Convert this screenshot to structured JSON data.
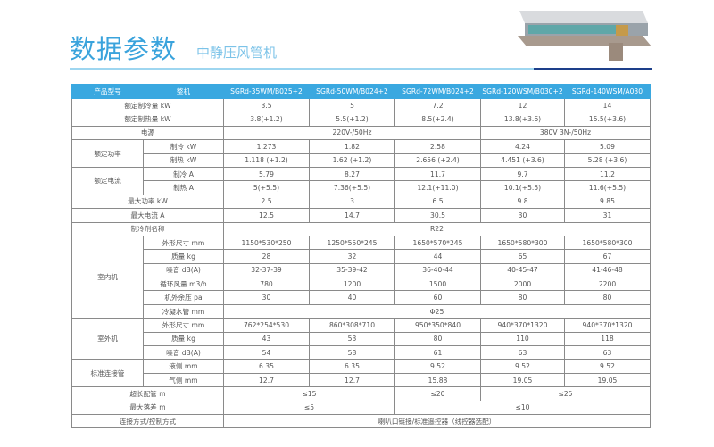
{
  "title": "数据参数",
  "subtitle": "中静压风管机",
  "colors": {
    "accent": "#3aa8e0",
    "rule_dark": "#1d3f8a"
  },
  "header": {
    "label1": "产品型号",
    "label2": "整机",
    "models": [
      "SGRd-35WM/B025+2",
      "SGRd-50WM/B024+2",
      "SGRd-72WM/B024+2",
      "SGRd-120WSM/B030+2",
      "SGRd-140WSM/A030"
    ]
  },
  "rows": [
    {
      "label": "额定制冷量 kW",
      "cells": [
        {
          "t": "3.5"
        },
        {
          "t": "5"
        },
        {
          "t": "7.2"
        },
        {
          "t": "12"
        },
        {
          "t": "14"
        }
      ]
    },
    {
      "label": "额定制热量 kW",
      "cells": [
        {
          "t": "3.8(+1.2)"
        },
        {
          "t": "5.5(+1.2)"
        },
        {
          "t": "8.5(+2.4)"
        },
        {
          "t": "13.8(+3.6)"
        },
        {
          "t": "15.5(+3.6)"
        }
      ]
    },
    {
      "label": "电源",
      "cells": [
        {
          "t": "220V-/50Hz",
          "span": 3
        },
        {
          "t": "380V 3N-/50Hz",
          "span": 2
        }
      ]
    },
    {
      "group": "额定功率",
      "groupSpan": 2,
      "label": "制冷 kW",
      "cells": [
        {
          "t": "1.273"
        },
        {
          "t": "1.82"
        },
        {
          "t": "2.58"
        },
        {
          "t": "4.24"
        },
        {
          "t": "5.09"
        }
      ]
    },
    {
      "label": "制热 kW",
      "sub": true,
      "cells": [
        {
          "t": "1.118 (+1.2)"
        },
        {
          "t": "1.62 (+1.2)"
        },
        {
          "t": "2.656 (+2.4)"
        },
        {
          "t": "4.451 (+3.6)"
        },
        {
          "t": "5.28 (+3.6)"
        }
      ]
    },
    {
      "group": "额定电流",
      "groupSpan": 2,
      "label": "制冷 A",
      "cells": [
        {
          "t": "5.79"
        },
        {
          "t": "8.27"
        },
        {
          "t": "11.7"
        },
        {
          "t": "9.7"
        },
        {
          "t": "11.2"
        }
      ]
    },
    {
      "label": "制热 A",
      "sub": true,
      "cells": [
        {
          "t": "5(+5.5)"
        },
        {
          "t": "7.36(+5.5)"
        },
        {
          "t": "12.1(+11.0)"
        },
        {
          "t": "10.1(+5.5)"
        },
        {
          "t": "11.6(+5.5)"
        }
      ]
    },
    {
      "label": "最大功率 kW",
      "cells": [
        {
          "t": "2.5"
        },
        {
          "t": "3"
        },
        {
          "t": "6.5"
        },
        {
          "t": "9.8"
        },
        {
          "t": "9.85"
        }
      ]
    },
    {
      "label": "最大电流 A",
      "cells": [
        {
          "t": "12.5"
        },
        {
          "t": "14.7"
        },
        {
          "t": "30.5"
        },
        {
          "t": "30"
        },
        {
          "t": "31"
        }
      ]
    },
    {
      "label": "制冷剂名称",
      "cells": [
        {
          "t": "R22",
          "span": 5
        }
      ]
    },
    {
      "group": "室内机",
      "groupSpan": 6,
      "label": "外形尺寸 mm",
      "cells": [
        {
          "t": "1150*530*250"
        },
        {
          "t": "1250*550*245"
        },
        {
          "t": "1650*570*245"
        },
        {
          "t": "1650*580*300"
        },
        {
          "t": "1650*580*300"
        }
      ]
    },
    {
      "label": "质量 kg",
      "sub": true,
      "cells": [
        {
          "t": "28"
        },
        {
          "t": "32"
        },
        {
          "t": "44"
        },
        {
          "t": "65"
        },
        {
          "t": "67"
        }
      ]
    },
    {
      "label": "噪音 dB(A)",
      "sub": true,
      "cells": [
        {
          "t": "32-37-39"
        },
        {
          "t": "35-39-42"
        },
        {
          "t": "36-40-44"
        },
        {
          "t": "40-45-47"
        },
        {
          "t": "41-46-48"
        }
      ]
    },
    {
      "label": "循环风量 m3/h",
      "sub": true,
      "cells": [
        {
          "t": "780"
        },
        {
          "t": "1200"
        },
        {
          "t": "1500"
        },
        {
          "t": "2000"
        },
        {
          "t": "2200"
        }
      ]
    },
    {
      "label": "机外余压 pa",
      "sub": true,
      "cells": [
        {
          "t": "30"
        },
        {
          "t": "40"
        },
        {
          "t": "60"
        },
        {
          "t": "80"
        },
        {
          "t": "80"
        }
      ]
    },
    {
      "label": "冷凝水管 mm",
      "sub": true,
      "cells": [
        {
          "t": "Φ25",
          "span": 5
        }
      ]
    },
    {
      "group": "室外机",
      "groupSpan": 3,
      "label": "外形尺寸 mm",
      "cells": [
        {
          "t": "762*254*530"
        },
        {
          "t": "860*308*710"
        },
        {
          "t": "950*350*840"
        },
        {
          "t": "940*370*1320"
        },
        {
          "t": "940*370*1320"
        }
      ]
    },
    {
      "label": "质量 kg",
      "sub": true,
      "cells": [
        {
          "t": "43"
        },
        {
          "t": "53"
        },
        {
          "t": "80"
        },
        {
          "t": "110"
        },
        {
          "t": "118"
        }
      ]
    },
    {
      "label": "噪音 dB(A)",
      "sub": true,
      "cells": [
        {
          "t": "54"
        },
        {
          "t": "58"
        },
        {
          "t": "61"
        },
        {
          "t": "63"
        },
        {
          "t": "63"
        }
      ]
    },
    {
      "group": "标准连接管",
      "groupSpan": 2,
      "label": "液侧 mm",
      "cells": [
        {
          "t": "6.35"
        },
        {
          "t": "6.35"
        },
        {
          "t": "9.52"
        },
        {
          "t": "9.52"
        },
        {
          "t": "9.52"
        }
      ]
    },
    {
      "label": "气侧 mm",
      "sub": true,
      "cells": [
        {
          "t": "12.7"
        },
        {
          "t": "12.7"
        },
        {
          "t": "15.88"
        },
        {
          "t": "19.05"
        },
        {
          "t": "19.05"
        }
      ]
    },
    {
      "label": "超长配管 m",
      "cells": [
        {
          "t": "≤15",
          "span": 2
        },
        {
          "t": "≤20"
        },
        {
          "t": "≤25",
          "span": 2
        }
      ]
    },
    {
      "label": "最大落差 m",
      "cells": [
        {
          "t": "≤5",
          "span": 2
        },
        {
          "t": "≤10",
          "span": 3
        }
      ]
    },
    {
      "label": "连接方式/控制方式",
      "cells": [
        {
          "t": "喇叭口链接/标准遥控器（线控器选配）",
          "span": 5
        }
      ]
    }
  ]
}
